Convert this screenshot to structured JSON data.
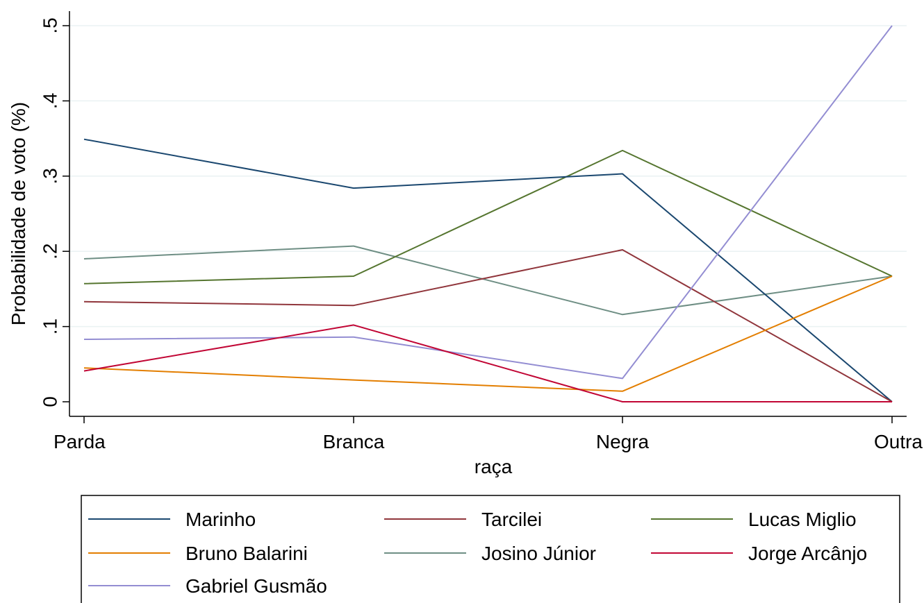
{
  "chart_data": {
    "type": "line",
    "title": "",
    "xlabel": "raça",
    "ylabel": "Probabilidade de voto (%)",
    "categories": [
      "Parda",
      "Branca",
      "Negra",
      "Outra"
    ],
    "ylim": [
      0,
      0.5
    ],
    "yticks": [
      {
        "value": 0,
        "label": "0"
      },
      {
        "value": 0.1,
        "label": ".1"
      },
      {
        "value": 0.2,
        "label": ".2"
      },
      {
        "value": 0.3,
        "label": ".3"
      },
      {
        "value": 0.4,
        "label": ".4"
      },
      {
        "value": 0.5,
        "label": ".5"
      }
    ],
    "grid": true,
    "legend_position": "bottom",
    "series": [
      {
        "name": "Marinho",
        "color": "#1a476f",
        "values": [
          0.349,
          0.284,
          0.303,
          0.0
        ]
      },
      {
        "name": "Tarcilei",
        "color": "#90353b",
        "values": [
          0.133,
          0.128,
          0.202,
          0.0
        ]
      },
      {
        "name": "Lucas Miglio",
        "color": "#55752f",
        "values": [
          0.157,
          0.167,
          0.334,
          0.167
        ]
      },
      {
        "name": "Bruno Balarini",
        "color": "#e37e00",
        "values": [
          0.045,
          0.029,
          0.014,
          0.167
        ]
      },
      {
        "name": "Josino Júnior",
        "color": "#6e8e84",
        "values": [
          0.19,
          0.207,
          0.116,
          0.167
        ]
      },
      {
        "name": "Jorge Arcânjo",
        "color": "#c10534",
        "values": [
          0.041,
          0.102,
          0.0,
          0.0
        ]
      },
      {
        "name": "Gabriel Gusmão",
        "color": "#938dd2",
        "values": [
          0.083,
          0.086,
          0.031,
          0.5
        ]
      }
    ]
  }
}
